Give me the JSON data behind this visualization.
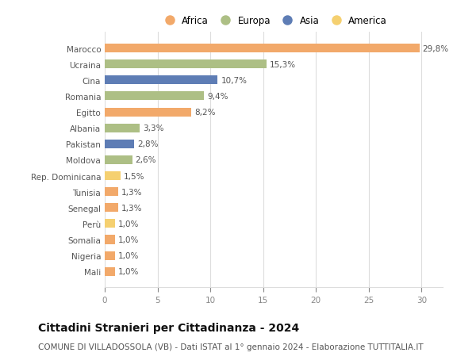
{
  "countries": [
    "Marocco",
    "Ucraina",
    "Cina",
    "Romania",
    "Egitto",
    "Albania",
    "Pakistan",
    "Moldova",
    "Rep. Dominicana",
    "Tunisia",
    "Senegal",
    "Perù",
    "Somalia",
    "Nigeria",
    "Mali"
  ],
  "values": [
    29.8,
    15.3,
    10.7,
    9.4,
    8.2,
    3.3,
    2.8,
    2.6,
    1.5,
    1.3,
    1.3,
    1.0,
    1.0,
    1.0,
    1.0
  ],
  "labels": [
    "29,8%",
    "15,3%",
    "10,7%",
    "9,4%",
    "8,2%",
    "3,3%",
    "2,8%",
    "2,6%",
    "1,5%",
    "1,3%",
    "1,3%",
    "1,0%",
    "1,0%",
    "1,0%",
    "1,0%"
  ],
  "continents": [
    "Africa",
    "Europa",
    "Asia",
    "Europa",
    "Africa",
    "Europa",
    "Asia",
    "Europa",
    "America",
    "Africa",
    "Africa",
    "America",
    "Africa",
    "Africa",
    "Africa"
  ],
  "continent_colors": {
    "Africa": "#F2A96A",
    "Europa": "#ADBF85",
    "Asia": "#5E7DB5",
    "America": "#F5D070"
  },
  "legend_order": [
    "Africa",
    "Europa",
    "Asia",
    "America"
  ],
  "legend_colors": [
    "#F2A96A",
    "#ADBF85",
    "#5E7DB5",
    "#F5D070"
  ],
  "xlim": [
    0,
    32
  ],
  "xticks": [
    0,
    5,
    10,
    15,
    20,
    25,
    30
  ],
  "title": "Cittadini Stranieri per Cittadinanza - 2024",
  "subtitle": "COMUNE DI VILLADOSSOLA (VB) - Dati ISTAT al 1° gennaio 2024 - Elaborazione TUTTITALIA.IT",
  "background_color": "#ffffff",
  "grid_color": "#dddddd",
  "bar_height": 0.55,
  "label_fontsize": 7.5,
  "tick_fontsize": 7.5,
  "title_fontsize": 10,
  "subtitle_fontsize": 7.5
}
